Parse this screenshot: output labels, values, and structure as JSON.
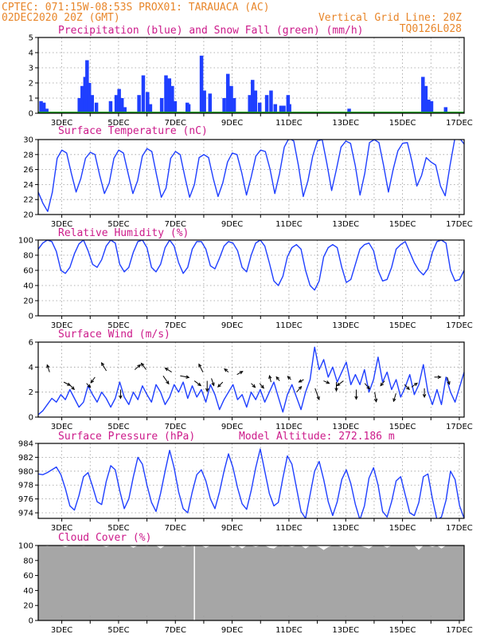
{
  "header": {
    "line1_left": "CPTEC:   071:15W-08:53S   PROX01: TARAUACA (AC)",
    "line2_left": "02DEC2020 20Z (GMT)",
    "line2_right": "Vertical Grid Line: 20Z",
    "line3_right": "TQ0126L028"
  },
  "colors": {
    "header": "#e8862a",
    "panel_title": "#cc1a8a",
    "line": "#1f3fff",
    "precip": "#1f3fff",
    "snow": "#19a019",
    "cloud": "#a6a6a6",
    "wind_arrow": "#000000"
  },
  "x_axis": {
    "tick_labels": [
      "3DEC",
      "5DEC",
      "7DEC",
      "9DEC",
      "11DEC",
      "13DEC",
      "15DEC",
      "17DEC"
    ]
  },
  "chart_data": [
    {
      "type": "bar",
      "title": "Precipitation (blue) and Snow Fall (green) (mm/h)",
      "ylim": [
        0,
        5
      ],
      "yticks": [
        "0",
        "1",
        "2",
        "3",
        "4",
        "5"
      ],
      "x_day_range": [
        2.0,
        17.0
      ],
      "series": [
        {
          "name": "Precipitation",
          "bars": [
            [
              2.1,
              0.8
            ],
            [
              2.2,
              0.7
            ],
            [
              2.3,
              0.3
            ],
            [
              3.45,
              1.0
            ],
            [
              3.55,
              1.8
            ],
            [
              3.65,
              2.4
            ],
            [
              3.72,
              3.5
            ],
            [
              3.8,
              2.0
            ],
            [
              3.9,
              1.2
            ],
            [
              4.05,
              0.7
            ],
            [
              4.55,
              0.8
            ],
            [
              4.75,
              1.2
            ],
            [
              4.85,
              1.6
            ],
            [
              4.95,
              1.0
            ],
            [
              5.05,
              0.4
            ],
            [
              5.35,
              0.1
            ],
            [
              5.55,
              1.2
            ],
            [
              5.7,
              2.5
            ],
            [
              5.85,
              1.4
            ],
            [
              5.95,
              0.6
            ],
            [
              6.35,
              1.0
            ],
            [
              6.5,
              2.5
            ],
            [
              6.62,
              2.3
            ],
            [
              6.72,
              1.8
            ],
            [
              6.82,
              0.8
            ],
            [
              7.25,
              0.7
            ],
            [
              7.3,
              0.6
            ],
            [
              7.75,
              3.8
            ],
            [
              7.85,
              1.5
            ],
            [
              8.05,
              1.3
            ],
            [
              8.55,
              1.0
            ],
            [
              8.68,
              2.6
            ],
            [
              8.8,
              1.8
            ],
            [
              8.9,
              1.0
            ],
            [
              9.45,
              1.2
            ],
            [
              9.55,
              2.2
            ],
            [
              9.65,
              1.5
            ],
            [
              9.8,
              0.7
            ],
            [
              10.05,
              1.2
            ],
            [
              10.2,
              1.5
            ],
            [
              10.35,
              0.6
            ],
            [
              10.55,
              0.5
            ],
            [
              10.65,
              0.5
            ],
            [
              10.8,
              1.2
            ],
            [
              10.85,
              0.6
            ],
            [
              12.95,
              0.3
            ],
            [
              15.55,
              2.4
            ],
            [
              15.65,
              1.8
            ],
            [
              15.75,
              0.9
            ],
            [
              15.85,
              0.8
            ],
            [
              16.35,
              0.4
            ]
          ]
        },
        {
          "name": "Snow Fall",
          "level": 0.0
        }
      ]
    },
    {
      "type": "line",
      "title": "Surface Temperature (nC)",
      "ylim": [
        20,
        30
      ],
      "yticks": [
        "20",
        "22",
        "24",
        "26",
        "28",
        "30"
      ],
      "x_day_range": [
        2.0,
        17.0
      ],
      "series": [
        {
          "name": "",
          "values": [
            23.0,
            21.5,
            20.4,
            23.0,
            27.5,
            28.6,
            28.2,
            25.5,
            23.0,
            24.8,
            27.5,
            28.3,
            28.0,
            25.2,
            22.8,
            24.2,
            27.5,
            28.6,
            28.2,
            25.5,
            22.8,
            24.5,
            27.8,
            28.8,
            28.4,
            25.3,
            22.3,
            23.5,
            27.5,
            28.4,
            28.0,
            25.0,
            22.3,
            24.0,
            27.6,
            28.0,
            27.6,
            24.8,
            22.4,
            24.2,
            27.0,
            28.2,
            28.0,
            25.6,
            22.6,
            25.0,
            27.8,
            28.6,
            28.4,
            26.0,
            22.8,
            25.5,
            29.0,
            30.2,
            29.8,
            26.5,
            22.4,
            24.5,
            27.8,
            29.8,
            30.0,
            26.8,
            23.2,
            26.0,
            29.0,
            29.8,
            29.5,
            26.5,
            22.6,
            25.5,
            29.6,
            30.0,
            29.6,
            26.5,
            23.0,
            26.0,
            28.5,
            29.5,
            29.6,
            27.0,
            23.8,
            25.2,
            27.6,
            27.0,
            26.6,
            23.8,
            22.5,
            26.5,
            30.0,
            30.2,
            29.4
          ]
        }
      ]
    },
    {
      "type": "line",
      "title": "Relative Humidity (%)",
      "ylim": [
        0,
        100
      ],
      "yticks": [
        "0",
        "20",
        "40",
        "60",
        "80",
        "100"
      ],
      "x_day_range": [
        2.0,
        17.0
      ],
      "series": [
        {
          "name": "",
          "values": [
            88,
            96,
            100,
            98,
            85,
            60,
            56,
            64,
            82,
            95,
            100,
            86,
            68,
            64,
            74,
            92,
            100,
            96,
            68,
            58,
            64,
            84,
            98,
            100,
            90,
            64,
            58,
            68,
            90,
            100,
            92,
            70,
            56,
            64,
            88,
            98,
            98,
            88,
            66,
            62,
            76,
            92,
            98,
            96,
            86,
            64,
            58,
            80,
            96,
            100,
            92,
            70,
            46,
            40,
            52,
            78,
            90,
            94,
            88,
            60,
            40,
            34,
            46,
            78,
            90,
            94,
            90,
            64,
            44,
            48,
            68,
            88,
            94,
            96,
            86,
            60,
            46,
            48,
            64,
            88,
            94,
            98,
            84,
            70,
            60,
            54,
            62,
            84,
            98,
            100,
            96,
            60,
            46,
            48,
            60
          ]
        }
      ]
    },
    {
      "type": "line",
      "title": "Surface Wind (m/s)",
      "ylim": [
        0,
        6
      ],
      "yticks": [
        "0",
        "2",
        "4",
        "6"
      ],
      "x_day_range": [
        2.0,
        17.0
      ],
      "series": [
        {
          "name": "",
          "values": [
            0.2,
            0.5,
            1.0,
            1.5,
            1.2,
            1.8,
            1.4,
            2.2,
            1.5,
            0.8,
            1.2,
            2.5,
            1.8,
            1.2,
            2.0,
            1.5,
            0.8,
            1.5,
            2.8,
            1.6,
            1.0,
            2.0,
            1.4,
            2.5,
            1.8,
            1.2,
            2.6,
            2.0,
            1.0,
            1.6,
            2.6,
            2.0,
            2.8,
            1.5,
            2.5,
            1.6,
            2.2,
            1.2,
            2.6,
            1.8,
            0.6,
            1.4,
            2.0,
            2.6,
            1.4,
            1.8,
            0.8,
            2.0,
            1.4,
            2.2,
            1.2,
            2.0,
            2.8,
            1.6,
            0.4,
            1.8,
            2.6,
            1.6,
            0.6,
            2.0,
            3.0,
            5.6,
            3.8,
            4.6,
            3.2,
            4.0,
            2.8,
            3.6,
            4.4,
            2.6,
            3.4,
            2.6,
            3.8,
            2.0,
            3.0,
            4.8,
            2.8,
            3.6,
            2.2,
            3.0,
            1.6,
            2.4,
            3.4,
            1.8,
            2.6,
            4.2,
            2.0,
            1.0,
            2.2,
            1.0,
            3.2,
            2.0,
            1.2,
            2.4,
            3.6
          ]
        }
      ],
      "wind_arrows": [
        [
          2.4,
          3.6,
          -3,
          -9
        ],
        [
          2.9,
          2.8,
          8,
          4
        ],
        [
          3.1,
          2.6,
          6,
          6
        ],
        [
          3.7,
          2.7,
          5,
          5
        ],
        [
          4.0,
          3.2,
          -5,
          7
        ],
        [
          4.4,
          3.7,
          -6,
          -10
        ],
        [
          4.9,
          2.2,
          0,
          11
        ],
        [
          5.4,
          3.8,
          7,
          -6
        ],
        [
          5.8,
          3.8,
          -6,
          -8
        ],
        [
          6.4,
          3.3,
          7,
          10
        ],
        [
          6.7,
          3.6,
          -8,
          -5
        ],
        [
          7.0,
          3.3,
          11,
          2
        ],
        [
          7.5,
          2.9,
          8,
          6
        ],
        [
          7.8,
          3.6,
          -5,
          -10
        ],
        [
          7.95,
          2.9,
          0,
          13
        ],
        [
          8.1,
          3.1,
          3,
          9
        ],
        [
          8.5,
          2.8,
          -6,
          6
        ],
        [
          8.7,
          3.6,
          -5,
          -4
        ],
        [
          9.0,
          3.4,
          7,
          -4
        ],
        [
          9.5,
          2.7,
          5,
          5
        ],
        [
          9.8,
          2.7,
          5,
          6
        ],
        [
          10.2,
          2.8,
          -2,
          -8
        ],
        [
          10.5,
          2.9,
          -4,
          -5
        ],
        [
          10.9,
          3.0,
          -4,
          -4
        ],
        [
          11.1,
          2.0,
          6,
          -7
        ],
        [
          11.35,
          3.0,
          -6,
          3
        ],
        [
          11.75,
          2.3,
          5,
          14
        ],
        [
          12.05,
          2.9,
          7,
          3
        ],
        [
          12.5,
          2.8,
          0,
          11
        ],
        [
          12.75,
          2.9,
          -8,
          6
        ],
        [
          13.2,
          2.2,
          0,
          12
        ],
        [
          13.5,
          2.7,
          6,
          7
        ],
        [
          13.85,
          2.0,
          2,
          12
        ],
        [
          14.2,
          2.9,
          -5,
          6
        ],
        [
          14.6,
          1.9,
          -3,
          10
        ],
        [
          14.9,
          2.6,
          6,
          6
        ],
        [
          15.15,
          2.4,
          7,
          -5
        ],
        [
          15.6,
          2.3,
          0,
          11
        ],
        [
          15.95,
          3.2,
          8,
          0
        ],
        [
          16.4,
          3.2,
          3,
          9
        ]
      ]
    },
    {
      "type": "line",
      "title": "Surface Pressure (hPa)",
      "subtitle": "Model Altitude: 272.186 m",
      "ylim": [
        973.2,
        984
      ],
      "yticks": [
        "974",
        "976",
        "978",
        "980",
        "982",
        "984"
      ],
      "x_day_range": [
        2.0,
        17.0
      ],
      "series": [
        {
          "name": "",
          "values": [
            979.6,
            979.5,
            979.8,
            980.2,
            980.6,
            979.5,
            977.5,
            975.0,
            974.4,
            976.5,
            979.2,
            979.8,
            977.8,
            975.6,
            975.2,
            978.5,
            980.8,
            980.2,
            977.2,
            974.6,
            976.0,
            979.2,
            982.0,
            981.0,
            978.0,
            975.5,
            974.2,
            976.8,
            980.0,
            983.0,
            980.5,
            977.0,
            974.6,
            974.0,
            977.0,
            979.5,
            980.2,
            978.6,
            976.0,
            974.6,
            977.0,
            980.0,
            982.5,
            980.5,
            977.6,
            975.3,
            974.5,
            977.2,
            980.5,
            983.2,
            980.0,
            976.8,
            975.0,
            975.5,
            979.0,
            982.2,
            981.0,
            977.6,
            974.2,
            973.2,
            976.6,
            980.0,
            981.4,
            978.8,
            975.6,
            973.6,
            975.6,
            978.8,
            980.2,
            978.2,
            975.2,
            973.0,
            975.0,
            979.0,
            980.5,
            978.0,
            974.2,
            973.4,
            975.6,
            978.6,
            979.2,
            976.6,
            974.0,
            973.6,
            975.5,
            979.2,
            979.6,
            976.0,
            973.0,
            973.4,
            975.8,
            980.0,
            978.8,
            975.0,
            973.2
          ]
        }
      ]
    },
    {
      "type": "area",
      "title": "Cloud Cover (%)",
      "ylim": [
        0,
        100
      ],
      "yticks": [
        "0",
        "20",
        "40",
        "60",
        "80",
        "100"
      ],
      "x_day_range": [
        2.0,
        17.0
      ],
      "series": [
        {
          "name": "",
          "values": [
            100,
            100,
            99,
            100,
            100,
            100,
            98,
            100,
            100,
            100,
            99,
            100,
            100,
            100,
            100,
            98,
            100,
            100,
            100,
            100,
            100,
            97,
            100,
            100,
            99,
            100,
            100,
            96,
            100,
            100,
            100,
            100,
            98,
            100,
            99,
            100,
            100,
            97,
            100,
            100,
            100,
            100,
            100,
            97,
            100,
            96,
            100,
            100,
            98,
            100,
            100,
            97,
            96,
            100,
            99,
            100,
            98,
            100,
            100,
            96,
            100,
            100,
            98,
            94,
            98,
            100,
            100,
            98,
            100,
            97,
            100,
            100,
            98,
            96,
            100,
            100,
            100,
            97,
            100,
            100,
            100,
            100,
            100,
            100,
            94,
            100,
            100,
            98,
            100,
            96,
            100,
            100,
            100,
            100,
            100
          ]
        }
      ],
      "gaps": [
        7.5
      ]
    }
  ]
}
